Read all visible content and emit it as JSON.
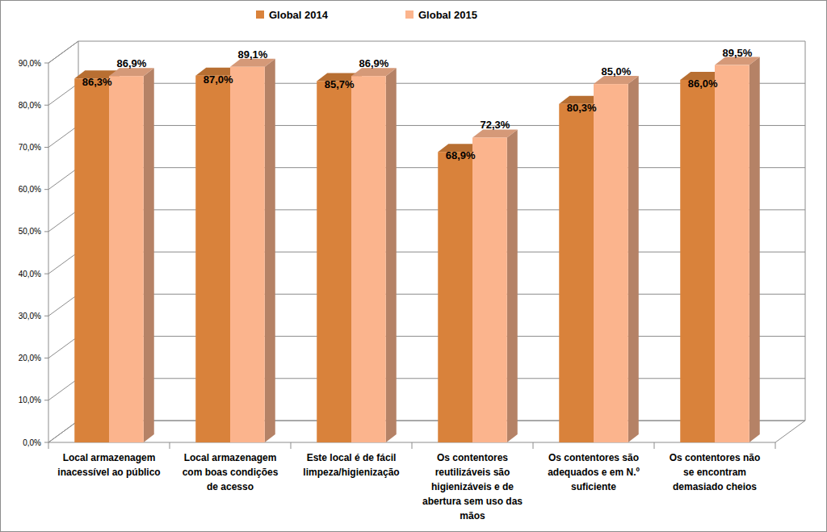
{
  "chart_data": {
    "type": "bar",
    "categories": [
      "Local armazenagem\ninacessível ao público",
      "Local armazenagem\ncom boas condições\nde acesso",
      "Este local é de fácil\nlimpeza/higienização",
      "Os contentores\nreutilizáveis são\nhigienizáveis e de\nabertura sem uso das\nmãos",
      "Os contentores são\nadequados e em N.º\nsuficiente",
      "Os contentores não\nse encontram\ndemasiado cheios"
    ],
    "series": [
      {
        "name": "Global 2014",
        "color": "#d9823b",
        "values": [
          86.3,
          87.0,
          85.7,
          68.9,
          80.3,
          86.0
        ],
        "value_labels": [
          "86,3%",
          "87,0%",
          "85,7%",
          "68,9%",
          "80,3%",
          "86,0%"
        ]
      },
      {
        "name": "Global 2015",
        "color": "#fbb48d",
        "values": [
          86.9,
          89.1,
          86.9,
          72.3,
          85.0,
          89.5
        ],
        "value_labels": [
          "86,9%",
          "89,1%",
          "86,9%",
          "72,3%",
          "85,0%",
          "89,5%"
        ]
      }
    ],
    "ylim": [
      0,
      90
    ],
    "yticks": [
      {
        "value": 0,
        "label": "0,0%"
      },
      {
        "value": 10,
        "label": "10,0%"
      },
      {
        "value": 20,
        "label": "20,0%"
      },
      {
        "value": 30,
        "label": "30,0%"
      },
      {
        "value": 40,
        "label": "40,0%"
      },
      {
        "value": 50,
        "label": "50,0%"
      },
      {
        "value": 60,
        "label": "60,0%"
      },
      {
        "value": 70,
        "label": "70,0%"
      },
      {
        "value": 80,
        "label": "80,0%"
      },
      {
        "value": 90,
        "label": "90,0%"
      }
    ],
    "grid": true,
    "legend": "top",
    "data_labels": true
  }
}
